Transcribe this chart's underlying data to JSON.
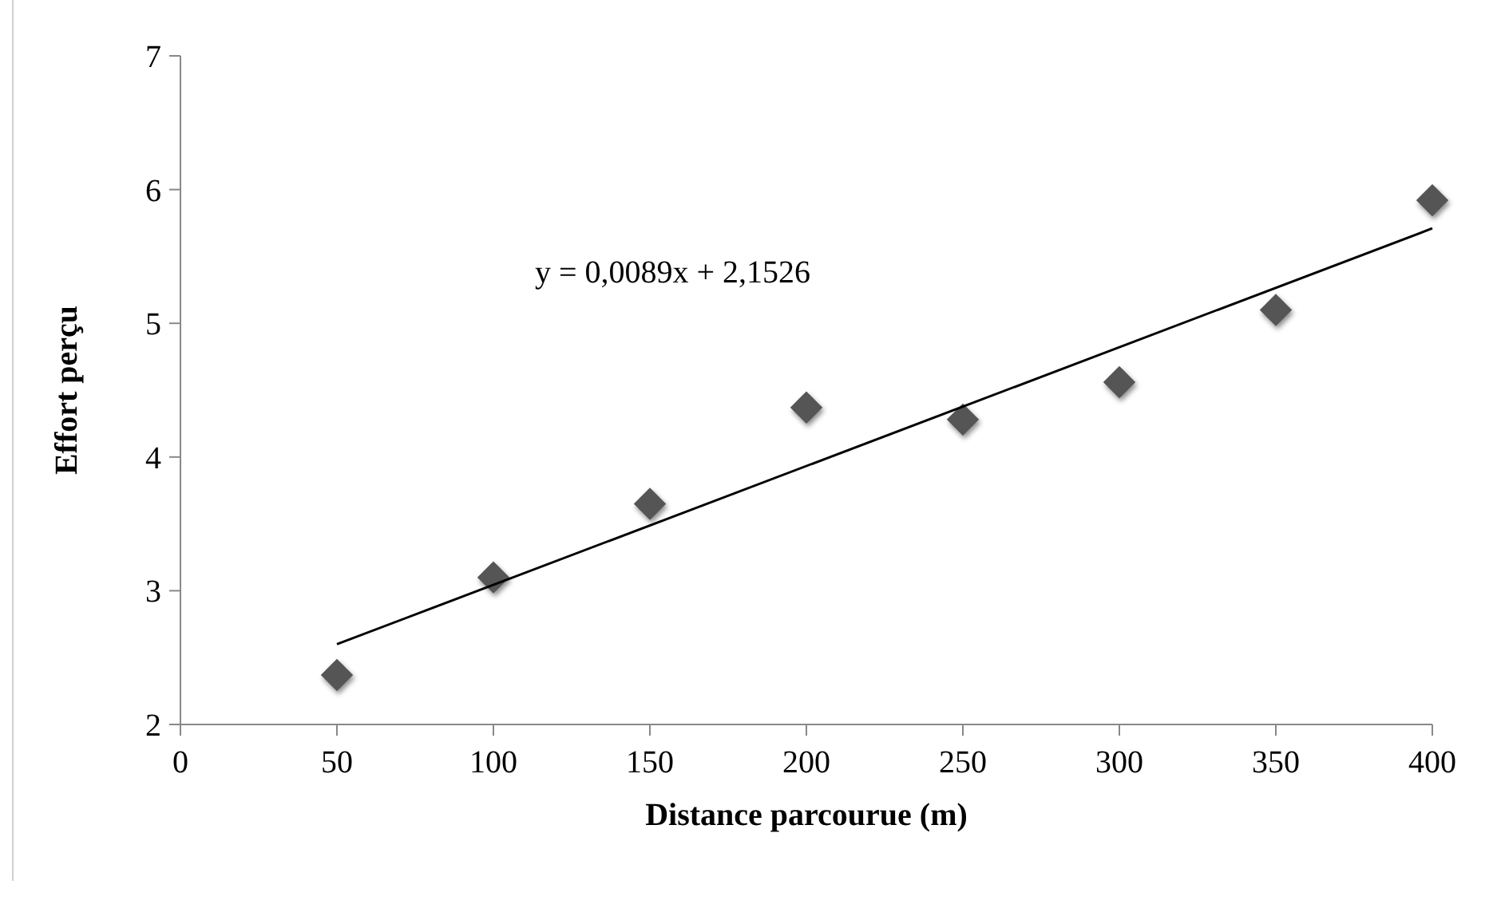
{
  "chart_data": {
    "type": "scatter",
    "xlabel": "Distance parcourue (m)",
    "ylabel": "Effort perçu",
    "x": [
      50,
      100,
      150,
      200,
      250,
      300,
      350,
      400
    ],
    "series": [
      {
        "color": "#555555",
        "marker": "diamond",
        "values": [
          2.37,
          3.1,
          3.65,
          4.37,
          4.28,
          4.56,
          5.1,
          5.92
        ]
      },
      {
        "type": "line",
        "color": "#000000",
        "x": [
          50,
          400
        ],
        "values": [
          2.6,
          5.71
        ],
        "marker": "none"
      }
    ],
    "annotations": [
      "y = 0,0089x + 2,1526"
    ],
    "xlim": [
      0,
      400
    ],
    "xticks": [
      0,
      50,
      100,
      150,
      200,
      250,
      300,
      350,
      400
    ],
    "ylim": [
      2,
      7
    ],
    "yticks": [
      2,
      3,
      4,
      5,
      6,
      7
    ],
    "grid": false
  }
}
